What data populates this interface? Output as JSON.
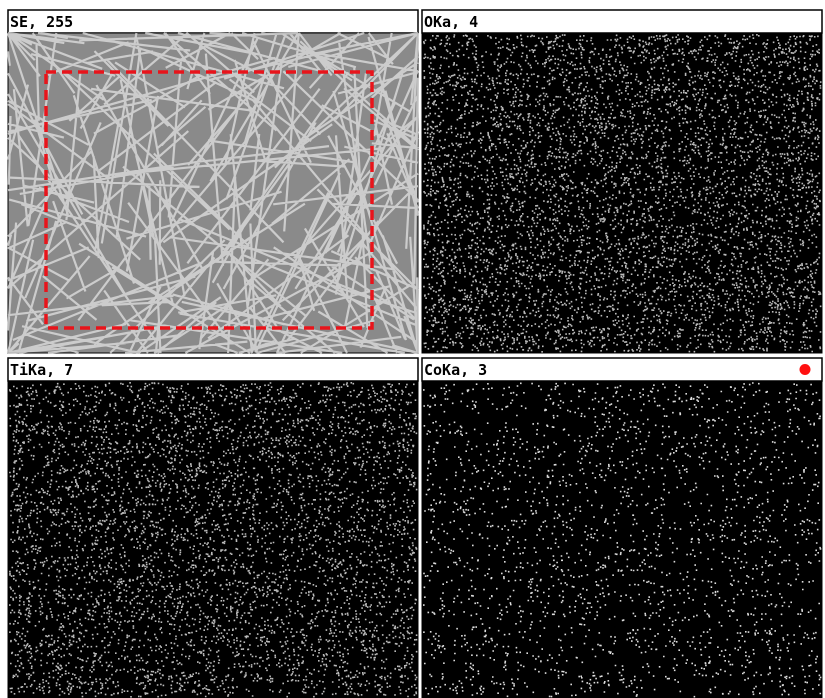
{
  "panels": [
    {
      "label": "SE, 255"
    },
    {
      "label": "OKa, 4"
    },
    {
      "label": "TiKa, 7"
    },
    {
      "label": "CoKa, 3"
    }
  ]
}
